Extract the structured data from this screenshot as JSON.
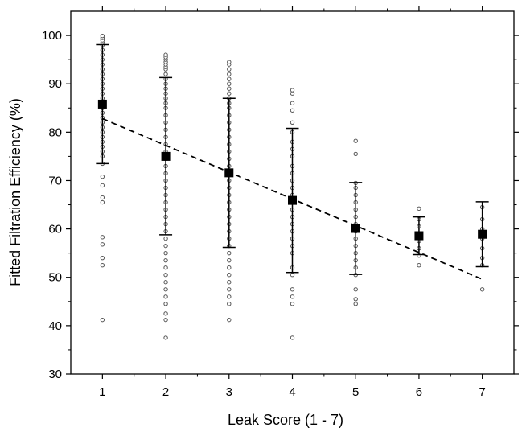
{
  "chart_data": {
    "type": "scatter",
    "title": "",
    "xlabel": "Leak Score (1 - 7)",
    "ylabel": "Fitted Filtration Efficiency (%)",
    "xlim": [
      0.5,
      7.5
    ],
    "ylim": [
      30,
      105
    ],
    "x_ticks": [
      "1",
      "2",
      "3",
      "4",
      "5",
      "6",
      "7"
    ],
    "y_ticks": [
      "30",
      "40",
      "50",
      "60",
      "70",
      "80",
      "90",
      "100"
    ],
    "grid": false,
    "legend": "none",
    "colors": {
      "axis": "#000000",
      "raw_point_stroke": "#555555",
      "mean_marker": "#000000",
      "fit_line": "#000000"
    },
    "series": [
      {
        "kind": "raw",
        "points": [
          {
            "x": 1,
            "y": [
              41.2,
              52.5,
              54,
              56.8,
              58.3,
              65.5,
              66.5,
              69,
              70.8,
              73.5,
              75,
              76,
              77,
              78,
              79,
              80,
              81,
              82,
              83,
              84,
              85,
              85.8,
              86.5,
              87,
              88,
              89,
              90,
              91,
              92,
              93,
              94,
              95,
              96,
              97,
              98,
              98.5,
              99,
              99.5,
              99.9
            ]
          },
          {
            "x": 2,
            "y": [
              37.5,
              41.2,
              42.5,
              44.5,
              46,
              47.5,
              49,
              50.5,
              52,
              53.5,
              55,
              56.5,
              58,
              59.5,
              61,
              62.5,
              64,
              65.5,
              67,
              68.5,
              70,
              71.5,
              73,
              74.5,
              75,
              76,
              77.5,
              79,
              80.5,
              82,
              83.5,
              85,
              86,
              87,
              88,
              89,
              90,
              91,
              92,
              93,
              93.5,
              94,
              94.5,
              95,
              95.5,
              96
            ]
          },
          {
            "x": 3,
            "y": [
              41.2,
              44.5,
              46,
              47.5,
              49,
              50.5,
              52,
              53.5,
              55,
              56.5,
              58,
              59.5,
              61,
              62.5,
              64,
              65.5,
              67,
              68.5,
              70,
              71.5,
              73,
              74.5,
              76,
              77.5,
              79,
              80.5,
              82,
              83.5,
              85,
              86,
              87,
              88,
              89,
              90,
              91,
              92,
              93,
              94,
              94.5
            ]
          },
          {
            "x": 4,
            "y": [
              37.5,
              44.5,
              46,
              47.5,
              50.5,
              52,
              55,
              56.5,
              58,
              59.5,
              61,
              62.5,
              64,
              65.5,
              67,
              68.5,
              70,
              71.5,
              73,
              75,
              76.5,
              78,
              80,
              82,
              84.5,
              86,
              88,
              88.7
            ]
          },
          {
            "x": 5,
            "y": [
              44.5,
              45.5,
              47.5,
              50.5,
              52,
              53.5,
              55,
              56.5,
              58,
              59.5,
              61,
              62.5,
              64,
              65.5,
              67,
              68.5,
              69.5,
              75.5,
              78.2
            ]
          },
          {
            "x": 6,
            "y": [
              52.5,
              54.5,
              56,
              57.5,
              59,
              60.5,
              62,
              64.2
            ]
          },
          {
            "x": 7,
            "y": [
              47.5,
              52.5,
              54,
              56,
              58,
              60,
              62,
              64.5
            ]
          }
        ]
      },
      {
        "kind": "mean_sd",
        "points": [
          {
            "x": 1,
            "mean": 85.8,
            "sd_low": 73.5,
            "sd_high": 98.1
          },
          {
            "x": 2,
            "mean": 75.0,
            "sd_low": 58.8,
            "sd_high": 91.3
          },
          {
            "x": 3,
            "mean": 71.6,
            "sd_low": 56.2,
            "sd_high": 87.0
          },
          {
            "x": 4,
            "mean": 65.9,
            "sd_low": 51.0,
            "sd_high": 80.8
          },
          {
            "x": 5,
            "mean": 60.1,
            "sd_low": 50.6,
            "sd_high": 69.6
          },
          {
            "x": 6,
            "mean": 58.6,
            "sd_low": 54.7,
            "sd_high": 62.5
          },
          {
            "x": 7,
            "mean": 58.9,
            "sd_low": 52.2,
            "sd_high": 65.6
          }
        ]
      },
      {
        "kind": "linear_fit",
        "x": [
          1,
          7
        ],
        "y": [
          82.8,
          49.6
        ]
      }
    ]
  }
}
